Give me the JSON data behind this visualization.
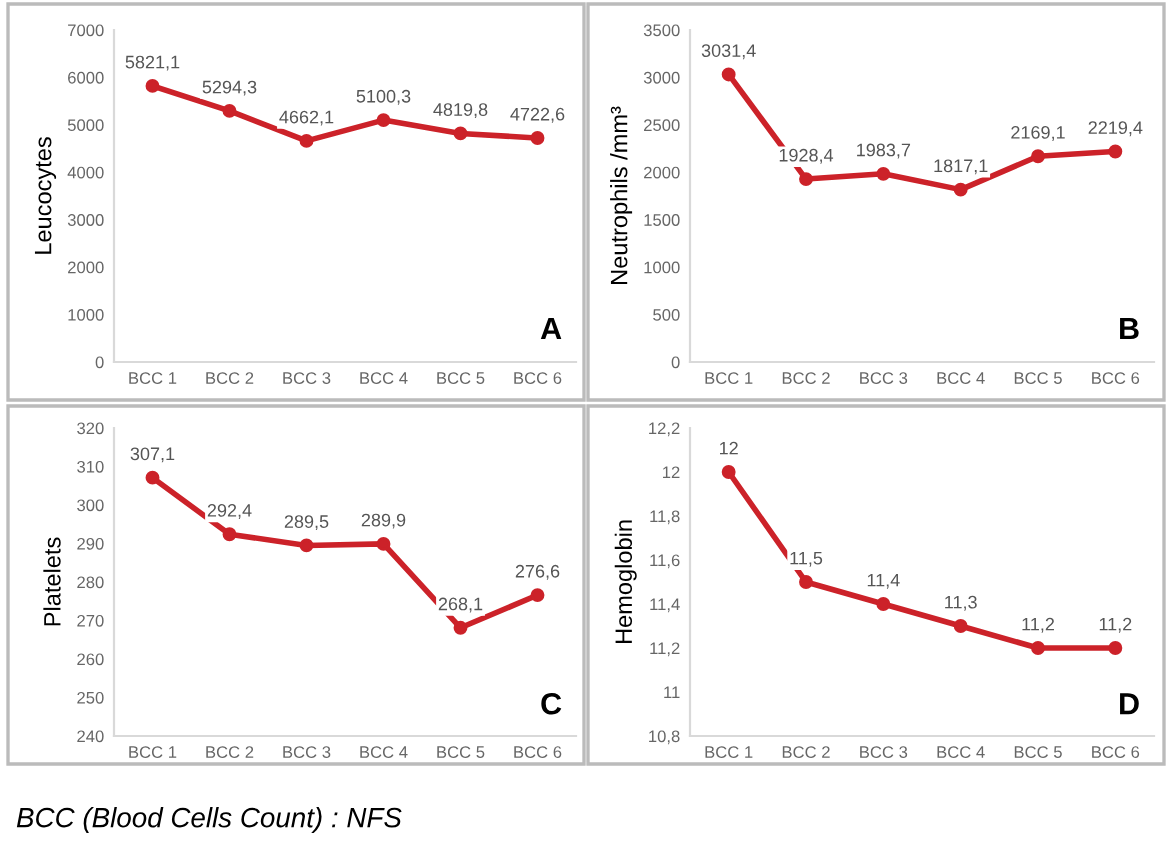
{
  "chart_data": [
    {
      "type": "line",
      "ylabel": "Leucocytes",
      "categories": [
        "BCC 1",
        "BCC 2",
        "BCC 3",
        "BCC 4",
        "BCC 5",
        "BCC 6"
      ],
      "series": [
        {
          "color": "#cc2229",
          "values": [
            5821.1,
            5294.3,
            4662.1,
            5100.3,
            4819.8,
            4722.6
          ],
          "value_labels": [
            "5821,1",
            "5294,3",
            "4662,1",
            "5100,3",
            "4819,8",
            "4722,6"
          ]
        }
      ],
      "ylim": [
        0,
        7000
      ],
      "yticks": [
        0,
        1000,
        2000,
        3000,
        4000,
        5000,
        6000,
        7000
      ],
      "grid": false,
      "marker": "circle",
      "line_style": "solid",
      "annotations": [
        "A"
      ]
    },
    {
      "type": "line",
      "ylabel": "Neutrophils /mm³",
      "categories": [
        "BCC 1",
        "BCC 2",
        "BCC 3",
        "BCC 4",
        "BCC 5",
        "BCC 6"
      ],
      "series": [
        {
          "color": "#cc2229",
          "values": [
            3031.4,
            1928.4,
            1983.7,
            1817.1,
            2169.1,
            2219.4
          ],
          "value_labels": [
            "3031,4",
            "1928,4",
            "1983,7",
            "1817,1",
            "2169,1",
            "2219,4"
          ]
        }
      ],
      "ylim": [
        0,
        3500
      ],
      "yticks": [
        0,
        500,
        1000,
        1500,
        2000,
        2500,
        3000,
        3500
      ],
      "grid": false,
      "marker": "circle",
      "line_style": "solid",
      "annotations": [
        "B"
      ]
    },
    {
      "type": "line",
      "ylabel": "Platelets",
      "categories": [
        "BCC 1",
        "BCC 2",
        "BCC 3",
        "BCC 4",
        "BCC 5",
        "BCC 6"
      ],
      "series": [
        {
          "color": "#cc2229",
          "values": [
            307.1,
            292.4,
            289.5,
            289.9,
            268.1,
            276.6
          ],
          "value_labels": [
            "307,1",
            "292,4",
            "289,5",
            "289,9",
            "268,1",
            "276,6"
          ]
        }
      ],
      "ylim": [
        240,
        320
      ],
      "yticks": [
        240,
        250,
        260,
        270,
        280,
        290,
        300,
        310,
        320
      ],
      "grid": false,
      "marker": "circle",
      "line_style": "solid",
      "annotations": [
        "C"
      ]
    },
    {
      "type": "line",
      "ylabel": "Hemoglobin",
      "categories": [
        "BCC 1",
        "BCC 2",
        "BCC 3",
        "BCC 4",
        "BCC 5",
        "BCC 6"
      ],
      "series": [
        {
          "color": "#cc2229",
          "values": [
            12,
            11.5,
            11.4,
            11.3,
            11.2,
            11.2
          ],
          "value_labels": [
            "12",
            "11,5",
            "11,4",
            "11,3",
            "11,2",
            "11,2"
          ]
        }
      ],
      "ylim": [
        10.8,
        12.2
      ],
      "yticks": [
        {
          "value": 10.8,
          "label": "10,8"
        },
        11,
        {
          "value": 11.2,
          "label": "11,2"
        },
        {
          "value": 11.4,
          "label": "11,4"
        },
        {
          "value": 11.6,
          "label": "11,6"
        },
        {
          "value": 11.8,
          "label": "11,8"
        },
        12,
        {
          "value": 12.2,
          "label": "12,2"
        }
      ],
      "grid": false,
      "marker": "circle",
      "line_style": "solid",
      "annotations": [
        "D",
        "BCC (Blood Cells Count) : NFS"
      ]
    }
  ]
}
